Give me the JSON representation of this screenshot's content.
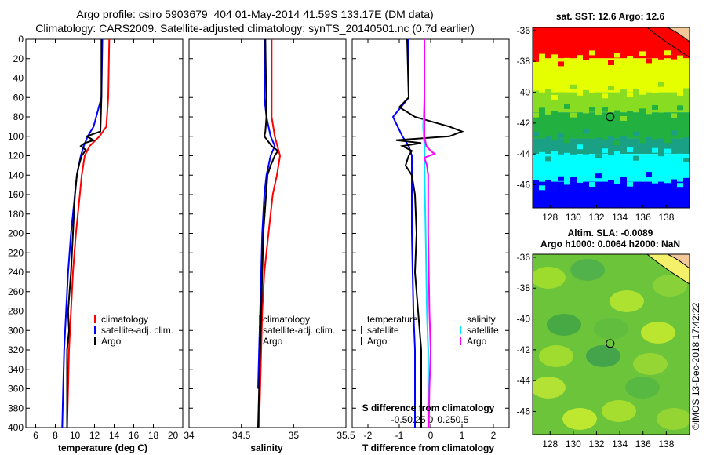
{
  "title_line1": "Argo profile: csiro 5903679_404 01-May-2014 41.59S 133.17E (DM data)",
  "title_line2": "Climatology: CARS2009. Satellite-adjusted climatology: synTS_20140501.nc (0.7d earlier)",
  "watermark": "©IMOS 13-Dec-2018 17:42:22",
  "colors": {
    "climatology": "#ff0000",
    "satellite": "#0000ff",
    "argo": "#000000",
    "s_satellite": "#00e5ff",
    "s_argo": "#ff00ff"
  },
  "depth_ticks": [
    "0",
    "20",
    "40",
    "60",
    "80",
    "100",
    "120",
    "140",
    "160",
    "180",
    "200",
    "220",
    "240",
    "260",
    "280",
    "300",
    "320",
    "340",
    "360",
    "380",
    "400"
  ],
  "chart_data": [
    {
      "type": "line",
      "name": "temperature",
      "xlabel": "temperature (deg C)",
      "ylabel": "depth",
      "xlim": [
        5,
        21
      ],
      "ylim": [
        400,
        0
      ],
      "xticks": [
        "6",
        "8",
        "10",
        "12",
        "14",
        "16",
        "18",
        "20"
      ],
      "legend": [
        "climatology",
        "satellite-adj. clim.",
        "Argo"
      ],
      "series": [
        {
          "name": "climatology",
          "depth": [
            0,
            60,
            90,
            100,
            110,
            120,
            140,
            160,
            200,
            240,
            280,
            320,
            360,
            400
          ],
          "values": [
            13.5,
            13.4,
            13.2,
            12.5,
            11.5,
            11.0,
            10.7,
            10.5,
            10.1,
            9.8,
            9.6,
            9.4,
            9.3,
            9.2
          ]
        },
        {
          "name": "satellite-adj. clim.",
          "depth": [
            0,
            60,
            90,
            100,
            110,
            120,
            140,
            160,
            200,
            240,
            280,
            320,
            360,
            400
          ],
          "values": [
            12.8,
            12.7,
            11.9,
            11.3,
            10.9,
            10.6,
            10.2,
            10.0,
            9.6,
            9.3,
            9.1,
            8.9,
            8.8,
            8.7
          ]
        },
        {
          "name": "Argo",
          "depth": [
            0,
            60,
            95,
            100,
            104,
            107,
            110,
            114,
            120,
            130,
            140,
            160,
            200,
            240,
            280,
            300,
            320,
            360,
            400
          ],
          "values": [
            12.7,
            12.7,
            12.6,
            11.2,
            11.9,
            11.0,
            10.6,
            11.1,
            10.7,
            10.4,
            10.2,
            10.0,
            9.8,
            9.6,
            9.3,
            9.4,
            9.2,
            9.2,
            9.2
          ]
        }
      ]
    },
    {
      "type": "line",
      "name": "salinity",
      "xlabel": "salinity",
      "xlim": [
        34,
        35.5
      ],
      "ylim": [
        400,
        0
      ],
      "xticks": [
        "34",
        "34.5",
        "35",
        "35.5"
      ],
      "legend": [
        "climatology",
        "satellite-adj. clim.",
        "Argo"
      ],
      "series": [
        {
          "name": "climatology",
          "depth": [
            0,
            60,
            80,
            100,
            120,
            140,
            160,
            200,
            240,
            280,
            320,
            360,
            400
          ],
          "values": [
            34.79,
            34.79,
            34.79,
            34.82,
            34.87,
            34.84,
            34.8,
            34.76,
            34.72,
            34.7,
            34.69,
            34.68,
            34.67
          ]
        },
        {
          "name": "satellite-adj. clim.",
          "depth": [
            0,
            60,
            80,
            100,
            110,
            120,
            140,
            160,
            200,
            240,
            280,
            320,
            360,
            400
          ],
          "values": [
            34.72,
            34.72,
            34.74,
            34.78,
            34.82,
            34.78,
            34.74,
            34.72,
            34.7,
            34.69,
            34.68,
            34.67,
            34.66
          ]
        },
        {
          "name": "Argo",
          "depth": [
            0,
            80,
            95,
            100,
            110,
            115,
            120,
            125,
            130,
            140,
            200,
            280,
            320,
            360,
            400
          ],
          "values": [
            34.73,
            34.74,
            34.73,
            34.72,
            34.79,
            34.85,
            34.82,
            34.8,
            34.78,
            34.75,
            34.71,
            34.69,
            34.68,
            34.67,
            34.66
          ]
        }
      ]
    },
    {
      "type": "line",
      "name": "differences",
      "xlabel": "T difference from climatology",
      "x2label": "S difference from climatology",
      "xlim": [
        -2.5,
        2.5
      ],
      "ylim": [
        400,
        0
      ],
      "xticks": [
        "-2",
        "-1",
        "0",
        "1",
        "2"
      ],
      "x2ticks": [
        "-0.5",
        "-0.25",
        "0",
        "0.25",
        "0.5"
      ],
      "legend_headers": [
        "temperature",
        "salinity"
      ],
      "legend_temperature": [
        "satellite",
        "Argo"
      ],
      "legend_salinity": [
        "satellite",
        "Argo"
      ],
      "series": [
        {
          "name": "T satellite",
          "depth": [
            0,
            60,
            80,
            100,
            110,
            120,
            140,
            200,
            280,
            320,
            360,
            400
          ],
          "values": [
            -0.7,
            -0.7,
            -1.2,
            -0.9,
            -0.7,
            -0.6,
            -0.6,
            -0.6,
            -0.55,
            -0.5,
            -0.5,
            -0.5
          ]
        },
        {
          "name": "T Argo",
          "depth": [
            0,
            60,
            70,
            80,
            90,
            95,
            100,
            104,
            107,
            110,
            115,
            120,
            130,
            140,
            160,
            200,
            240,
            280,
            320,
            360,
            400
          ],
          "values": [
            -0.75,
            -0.7,
            -1.0,
            -0.5,
            0.6,
            1.0,
            0.6,
            -1.1,
            -0.3,
            -0.9,
            -0.6,
            -0.7,
            -0.8,
            -0.6,
            -0.5,
            -0.45,
            -0.5,
            -0.4,
            -0.3,
            -0.3,
            -0.3
          ]
        },
        {
          "name": "S satellite",
          "depth": [
            0,
            60,
            90,
            110,
            120,
            130,
            200,
            280,
            320,
            360,
            400
          ],
          "values": [
            -0.1,
            -0.1,
            -0.12,
            -0.1,
            -0.1,
            -0.1,
            -0.08,
            -0.06,
            -0.04,
            -0.04,
            -0.04
          ]
        },
        {
          "name": "S Argo",
          "depth": [
            0,
            90,
            100,
            110,
            115,
            118,
            122,
            126,
            130,
            140,
            200,
            280,
            300,
            320,
            360,
            400
          ],
          "values": [
            -0.1,
            -0.1,
            -0.1,
            -0.07,
            0.0,
            0.06,
            -0.1,
            -0.08,
            -0.06,
            -0.04,
            -0.04,
            -0.02,
            -0.01,
            0.0,
            -0.02,
            -0.03
          ]
        }
      ]
    },
    {
      "type": "heatmap",
      "name": "sat-sst-map",
      "title": "sat. SST: 12.6 Argo: 12.6",
      "xticks": [
        "128",
        "130",
        "132",
        "134",
        "136",
        "138"
      ],
      "yticks": [
        "-36",
        "-38",
        "-40",
        "-42",
        "-44",
        "-46"
      ],
      "xlim": [
        126.5,
        140
      ],
      "ylim": [
        -47.5,
        -35.8
      ],
      "argo_position": [
        133.17,
        -41.59
      ],
      "bands": [
        {
          "lat_from": -35.8,
          "lat_to": -37.8,
          "color": "#ff0000"
        },
        {
          "lat_from": -37.8,
          "lat_to": -40.0,
          "color": "#e6ff00"
        },
        {
          "lat_from": -40.0,
          "lat_to": -41.3,
          "color": "#88dd22"
        },
        {
          "lat_from": -41.3,
          "lat_to": -43.0,
          "color": "#22b040"
        },
        {
          "lat_from": -43.0,
          "lat_to": -44.0,
          "color": "#1aa084"
        },
        {
          "lat_from": -44.0,
          "lat_to": -45.8,
          "color": "#00ffff"
        },
        {
          "lat_from": -45.8,
          "lat_to": -47.5,
          "color": "#0000ff"
        }
      ]
    },
    {
      "type": "heatmap",
      "name": "sla-map",
      "title": "Altim. SLA: -0.0089",
      "subtitle": "Argo h1000: 0.0064 h2000: NaN",
      "xticks": [
        "128",
        "130",
        "132",
        "134",
        "136",
        "138"
      ],
      "yticks": [
        "-36",
        "-38",
        "-40",
        "-42",
        "-44",
        "-46"
      ],
      "xlim": [
        126.5,
        140
      ],
      "ylim": [
        -47.5,
        -35.8
      ],
      "argo_position": [
        133.17,
        -41.59
      ]
    }
  ]
}
